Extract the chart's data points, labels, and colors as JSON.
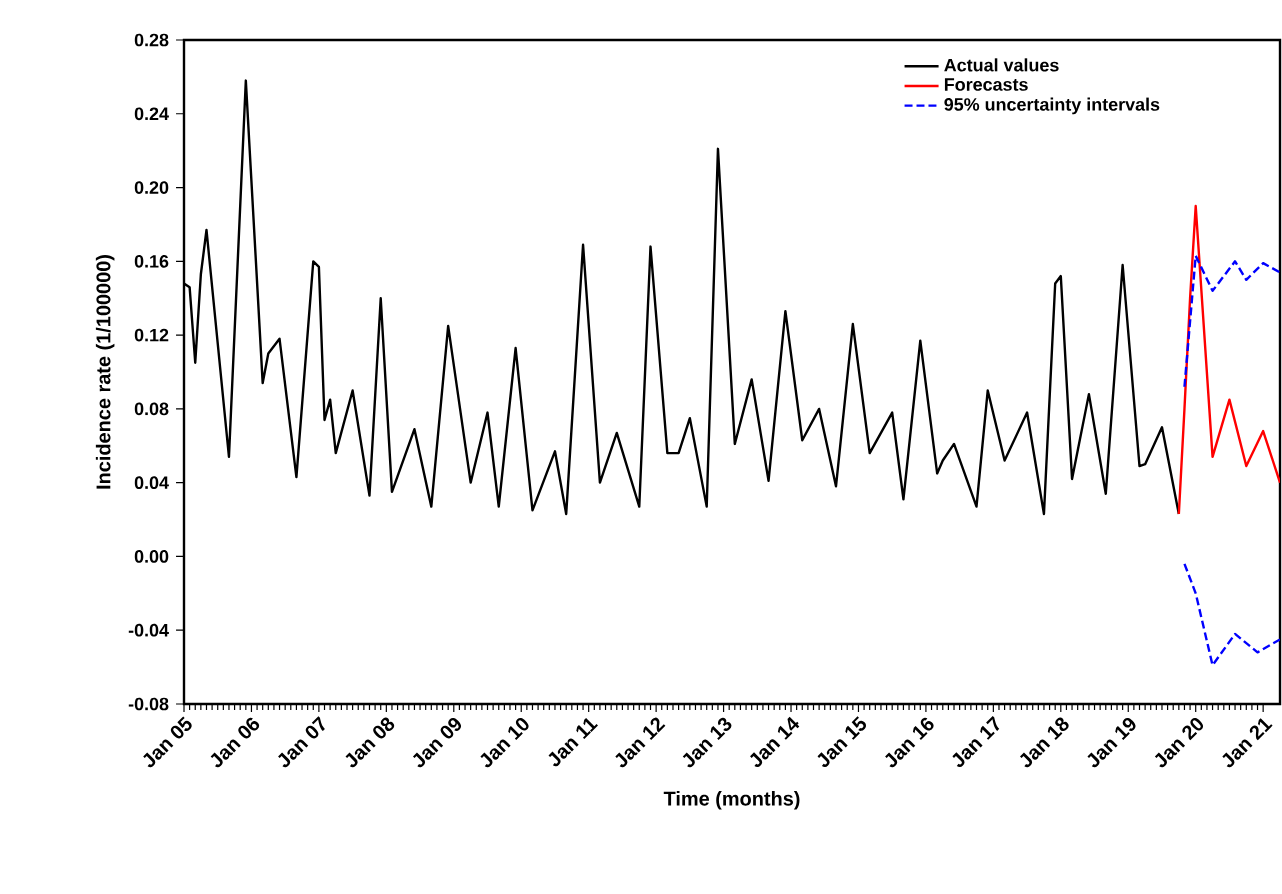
{
  "chart_data": {
    "type": "line",
    "xlabel": "Time (months)",
    "ylabel": "Incidence rate (1/100000)",
    "xlim": [
      "2005-01",
      "2021-04"
    ],
    "ylim": [
      -0.08,
      0.28
    ],
    "xticks": [
      {
        "value": "2005-01",
        "label": "Jan 05"
      },
      {
        "value": "2006-01",
        "label": "Jan 06"
      },
      {
        "value": "2007-01",
        "label": "Jan 07"
      },
      {
        "value": "2008-01",
        "label": "Jan 08"
      },
      {
        "value": "2009-01",
        "label": "Jan 09"
      },
      {
        "value": "2010-01",
        "label": "Jan 10"
      },
      {
        "value": "2011-01",
        "label": "Jan 11"
      },
      {
        "value": "2012-01",
        "label": "Jan 12"
      },
      {
        "value": "2013-01",
        "label": "Jan 13"
      },
      {
        "value": "2014-01",
        "label": "Jan 14"
      },
      {
        "value": "2015-01",
        "label": "Jan 15"
      },
      {
        "value": "2016-01",
        "label": "Jan 16"
      },
      {
        "value": "2017-01",
        "label": "Jan 17"
      },
      {
        "value": "2018-01",
        "label": "Jan 18"
      },
      {
        "value": "2019-01",
        "label": "Jan 19"
      },
      {
        "value": "2020-01",
        "label": "Jan 20"
      },
      {
        "value": "2021-01",
        "label": "Jan 21"
      }
    ],
    "yticks": [
      {
        "value": -0.08,
        "label": "-0.08"
      },
      {
        "value": -0.04,
        "label": "-0.04"
      },
      {
        "value": 0,
        "label": "0.00"
      },
      {
        "value": 0.04,
        "label": "0.04"
      },
      {
        "value": 0.08,
        "label": "0.08"
      },
      {
        "value": 0.12,
        "label": "0.12"
      },
      {
        "value": 0.16,
        "label": "0.16"
      },
      {
        "value": 0.2,
        "label": "0.20"
      },
      {
        "value": 0.24,
        "label": "0.24"
      },
      {
        "value": 0.28,
        "label": "0.28"
      }
    ],
    "grid": false,
    "legend": "top right",
    "series": [
      {
        "name": "Actual values",
        "color": "#000000",
        "line_style": "solid",
        "x": [
          "2005-01",
          "2005-02",
          "2005-03",
          "2005-04",
          "2005-05",
          "2005-09",
          "2005-12",
          "2006-03",
          "2006-04",
          "2006-06",
          "2006-09",
          "2006-12",
          "2007-01",
          "2007-02",
          "2007-03",
          "2007-04",
          "2007-07",
          "2007-10",
          "2007-12",
          "2008-02",
          "2008-06",
          "2008-09",
          "2008-12",
          "2009-04",
          "2009-07",
          "2009-09",
          "2009-12",
          "2010-03",
          "2010-07",
          "2010-09",
          "2010-12",
          "2011-03",
          "2011-06",
          "2011-10",
          "2011-12",
          "2012-03",
          "2012-05",
          "2012-07",
          "2012-10",
          "2012-12",
          "2013-03",
          "2013-06",
          "2013-09",
          "2013-12",
          "2014-03",
          "2014-06",
          "2014-09",
          "2014-12",
          "2015-03",
          "2015-07",
          "2015-09",
          "2015-12",
          "2016-03",
          "2016-04",
          "2016-06",
          "2016-10",
          "2016-12",
          "2017-03",
          "2017-07",
          "2017-10",
          "2017-12",
          "2018-01",
          "2018-03",
          "2018-06",
          "2018-09",
          "2018-12",
          "2019-03",
          "2019-04",
          "2019-07",
          "2019-10"
        ],
        "values": [
          0.148,
          0.146,
          0.105,
          0.153,
          0.177,
          0.054,
          0.258,
          0.094,
          0.11,
          0.118,
          0.043,
          0.16,
          0.157,
          0.074,
          0.085,
          0.056,
          0.09,
          0.033,
          0.14,
          0.035,
          0.069,
          0.027,
          0.125,
          0.04,
          0.078,
          0.027,
          0.113,
          0.025,
          0.057,
          0.023,
          0.169,
          0.04,
          0.067,
          0.027,
          0.168,
          0.056,
          0.056,
          0.075,
          0.027,
          0.221,
          0.061,
          0.096,
          0.041,
          0.133,
          0.063,
          0.08,
          0.038,
          0.126,
          0.056,
          0.078,
          0.031,
          0.117,
          0.045,
          0.052,
          0.061,
          0.027,
          0.09,
          0.052,
          0.078,
          0.023,
          0.148,
          0.152,
          0.042,
          0.088,
          0.034,
          0.158,
          0.049,
          0.05,
          0.07,
          0.023
        ]
      },
      {
        "name": "Forecasts",
        "color": "#ff0000",
        "line_style": "solid",
        "x": [
          "2019-10",
          "2019-11",
          "2019-12",
          "2020-01",
          "2020-04",
          "2020-07",
          "2020-10",
          "2021-01",
          "2021-04"
        ],
        "values": [
          0.023,
          0.08,
          0.14,
          0.19,
          0.054,
          0.085,
          0.049,
          0.068,
          0.04
        ]
      },
      {
        "name": "95% uncertainty intervals",
        "color": "#0000ff",
        "line_style": "dashed",
        "x": [
          "2019-11",
          "2020-01",
          "2020-04",
          "2020-08",
          "2020-10",
          "2021-01",
          "2021-04"
        ],
        "values": [
          0.092,
          0.163,
          0.144,
          0.16,
          0.15,
          0.159,
          0.154
        ]
      },
      {
        "color": "#0000ff",
        "line_style": "dashed",
        "x": [
          "2019-11",
          "2020-01",
          "2020-04",
          "2020-08",
          "2020-12",
          "2021-04"
        ],
        "values": [
          -0.004,
          -0.02,
          -0.059,
          -0.042,
          -0.052,
          -0.045
        ]
      }
    ]
  }
}
